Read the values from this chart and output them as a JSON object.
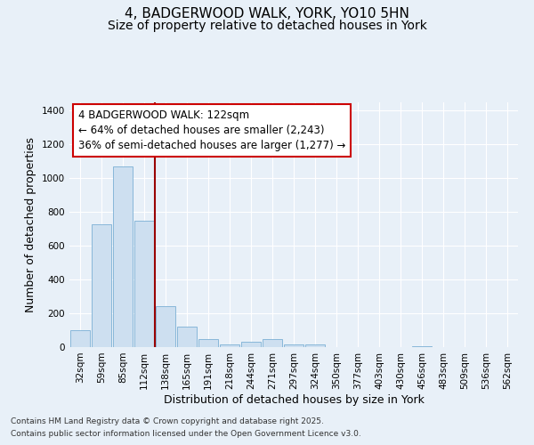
{
  "title_line1": "4, BADGERWOOD WALK, YORK, YO10 5HN",
  "title_line2": "Size of property relative to detached houses in York",
  "xlabel": "Distribution of detached houses by size in York",
  "ylabel": "Number of detached properties",
  "bar_values": [
    100,
    730,
    1070,
    750,
    240,
    120,
    50,
    15,
    30,
    50,
    15,
    15,
    2,
    1,
    1,
    1,
    5,
    1,
    1,
    1,
    1
  ],
  "bar_labels": [
    "32sqm",
    "59sqm",
    "85sqm",
    "112sqm",
    "138sqm",
    "165sqm",
    "191sqm",
    "218sqm",
    "244sqm",
    "271sqm",
    "297sqm",
    "324sqm",
    "350sqm",
    "377sqm",
    "403sqm",
    "430sqm",
    "456sqm",
    "483sqm",
    "509sqm",
    "536sqm",
    "562sqm"
  ],
  "bar_color": "#cddff0",
  "bar_edge_color": "#7bafd4",
  "vline_color": "#990000",
  "vline_x": 3.5,
  "annotation_text": "4 BADGERWOOD WALK: 122sqm\n← 64% of detached houses are smaller (2,243)\n36% of semi-detached houses are larger (1,277) →",
  "annotation_box_color": "#ffffff",
  "annotation_box_edge": "#cc0000",
  "ylim": [
    0,
    1450
  ],
  "yticks": [
    0,
    200,
    400,
    600,
    800,
    1000,
    1200,
    1400
  ],
  "background_color": "#e8f0f8",
  "plot_bg_color": "#e8f0f8",
  "footer_line1": "Contains HM Land Registry data © Crown copyright and database right 2025.",
  "footer_line2": "Contains public sector information licensed under the Open Government Licence v3.0.",
  "title_fontsize": 11,
  "subtitle_fontsize": 10,
  "axis_label_fontsize": 9,
  "tick_fontsize": 7.5,
  "annotation_fontsize": 8.5,
  "footer_fontsize": 6.5
}
